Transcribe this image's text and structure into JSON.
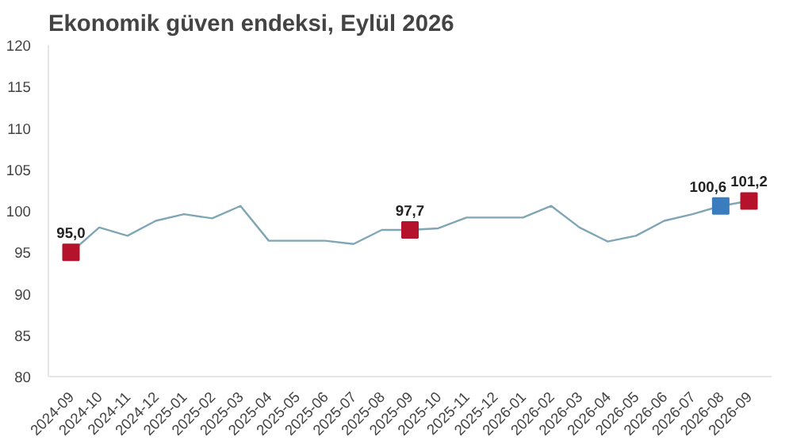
{
  "chart_data": {
    "type": "line",
    "title": "Ekonomik güven endeksi, Eylül 2026",
    "categories": [
      "2024-09",
      "2024-10",
      "2024-11",
      "2024-12",
      "2025-01",
      "2025-02",
      "2025-03",
      "2025-04",
      "2025-05",
      "2025-06",
      "2025-07",
      "2025-08",
      "2025-09",
      "2025-10",
      "2025-11",
      "2025-12",
      "2026-01",
      "2026-02",
      "2026-03",
      "2026-04",
      "2026-05",
      "2026-06",
      "2026-07",
      "2026-08",
      "2026-09"
    ],
    "ylim": [
      80,
      120
    ],
    "yticks": [
      80,
      85,
      90,
      95,
      100,
      105,
      110,
      115,
      120
    ],
    "grid": false,
    "series": [
      {
        "color": "#7fa6b5",
        "values": [
          95.0,
          98.0,
          97.0,
          98.8,
          99.6,
          99.1,
          100.6,
          96.4,
          96.4,
          96.4,
          96.0,
          97.7,
          97.7,
          97.9,
          99.2,
          99.2,
          99.2,
          100.6,
          98.0,
          96.3,
          97.0,
          98.8,
          99.6,
          100.6,
          101.2
        ]
      },
      {
        "type": "scatter",
        "marker": "square",
        "values": [
          95.0,
          null,
          null,
          null,
          null,
          null,
          null,
          null,
          null,
          null,
          null,
          null,
          97.7,
          null,
          null,
          null,
          null,
          null,
          null,
          null,
          null,
          null,
          null,
          100.6,
          101.2
        ],
        "colors": [
          "#b5122b",
          null,
          null,
          null,
          null,
          null,
          null,
          null,
          null,
          null,
          null,
          null,
          "#b5122b",
          null,
          null,
          null,
          null,
          null,
          null,
          null,
          null,
          null,
          null,
          "#3a7dbf",
          "#b5122b"
        ],
        "value_labels": [
          "95,0",
          null,
          null,
          null,
          null,
          null,
          null,
          null,
          null,
          null,
          null,
          null,
          "97,7",
          null,
          null,
          null,
          null,
          null,
          null,
          null,
          null,
          null,
          null,
          "100,6",
          "101,2"
        ]
      }
    ]
  }
}
